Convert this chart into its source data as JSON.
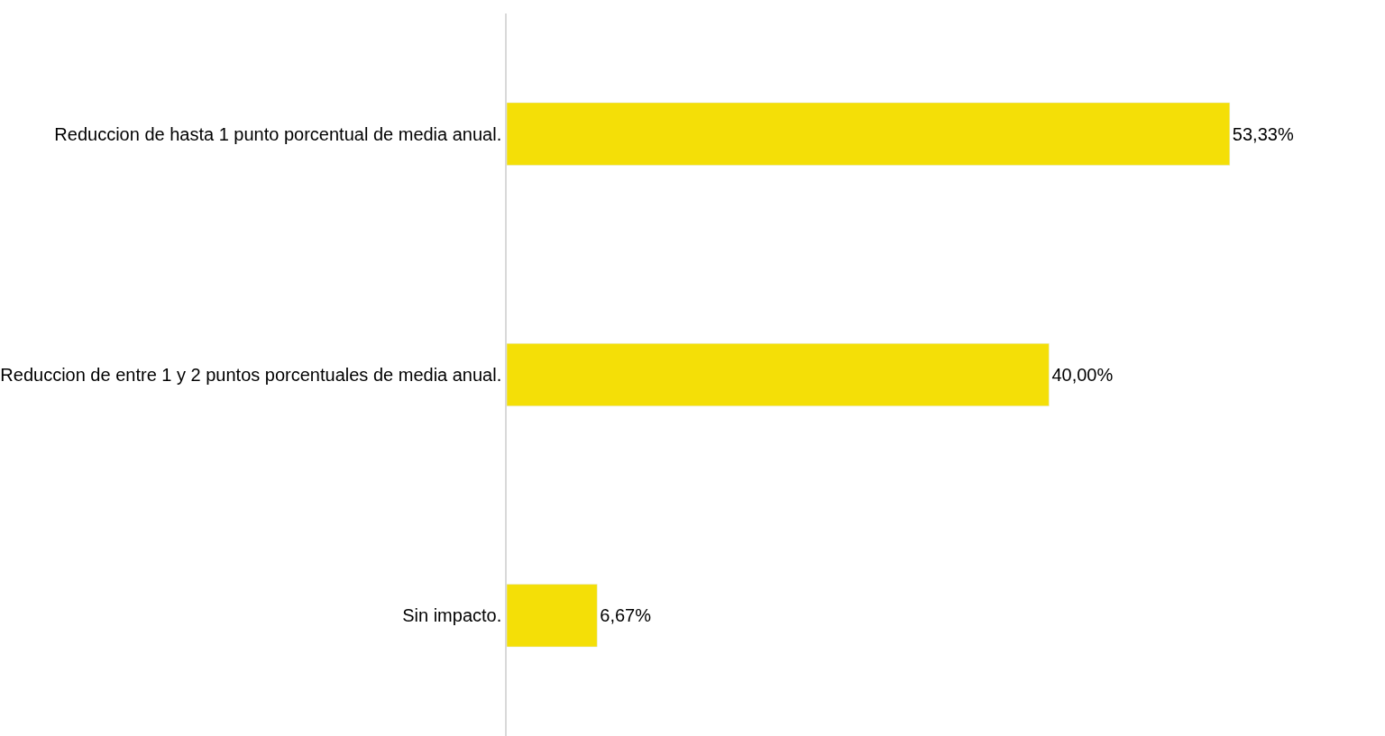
{
  "chart_data": {
    "type": "bar",
    "orientation": "horizontal",
    "categories": [
      "Reduccion de hasta 1 punto porcentual de media anual.",
      "Reduccion de entre 1 y 2 puntos porcentuales de media anual.",
      "Sin impacto."
    ],
    "values": [
      53.33,
      40.0,
      6.67
    ],
    "value_labels": [
      "53,33%",
      "40,00%",
      "6,67%"
    ],
    "color": "#f4df07"
  }
}
